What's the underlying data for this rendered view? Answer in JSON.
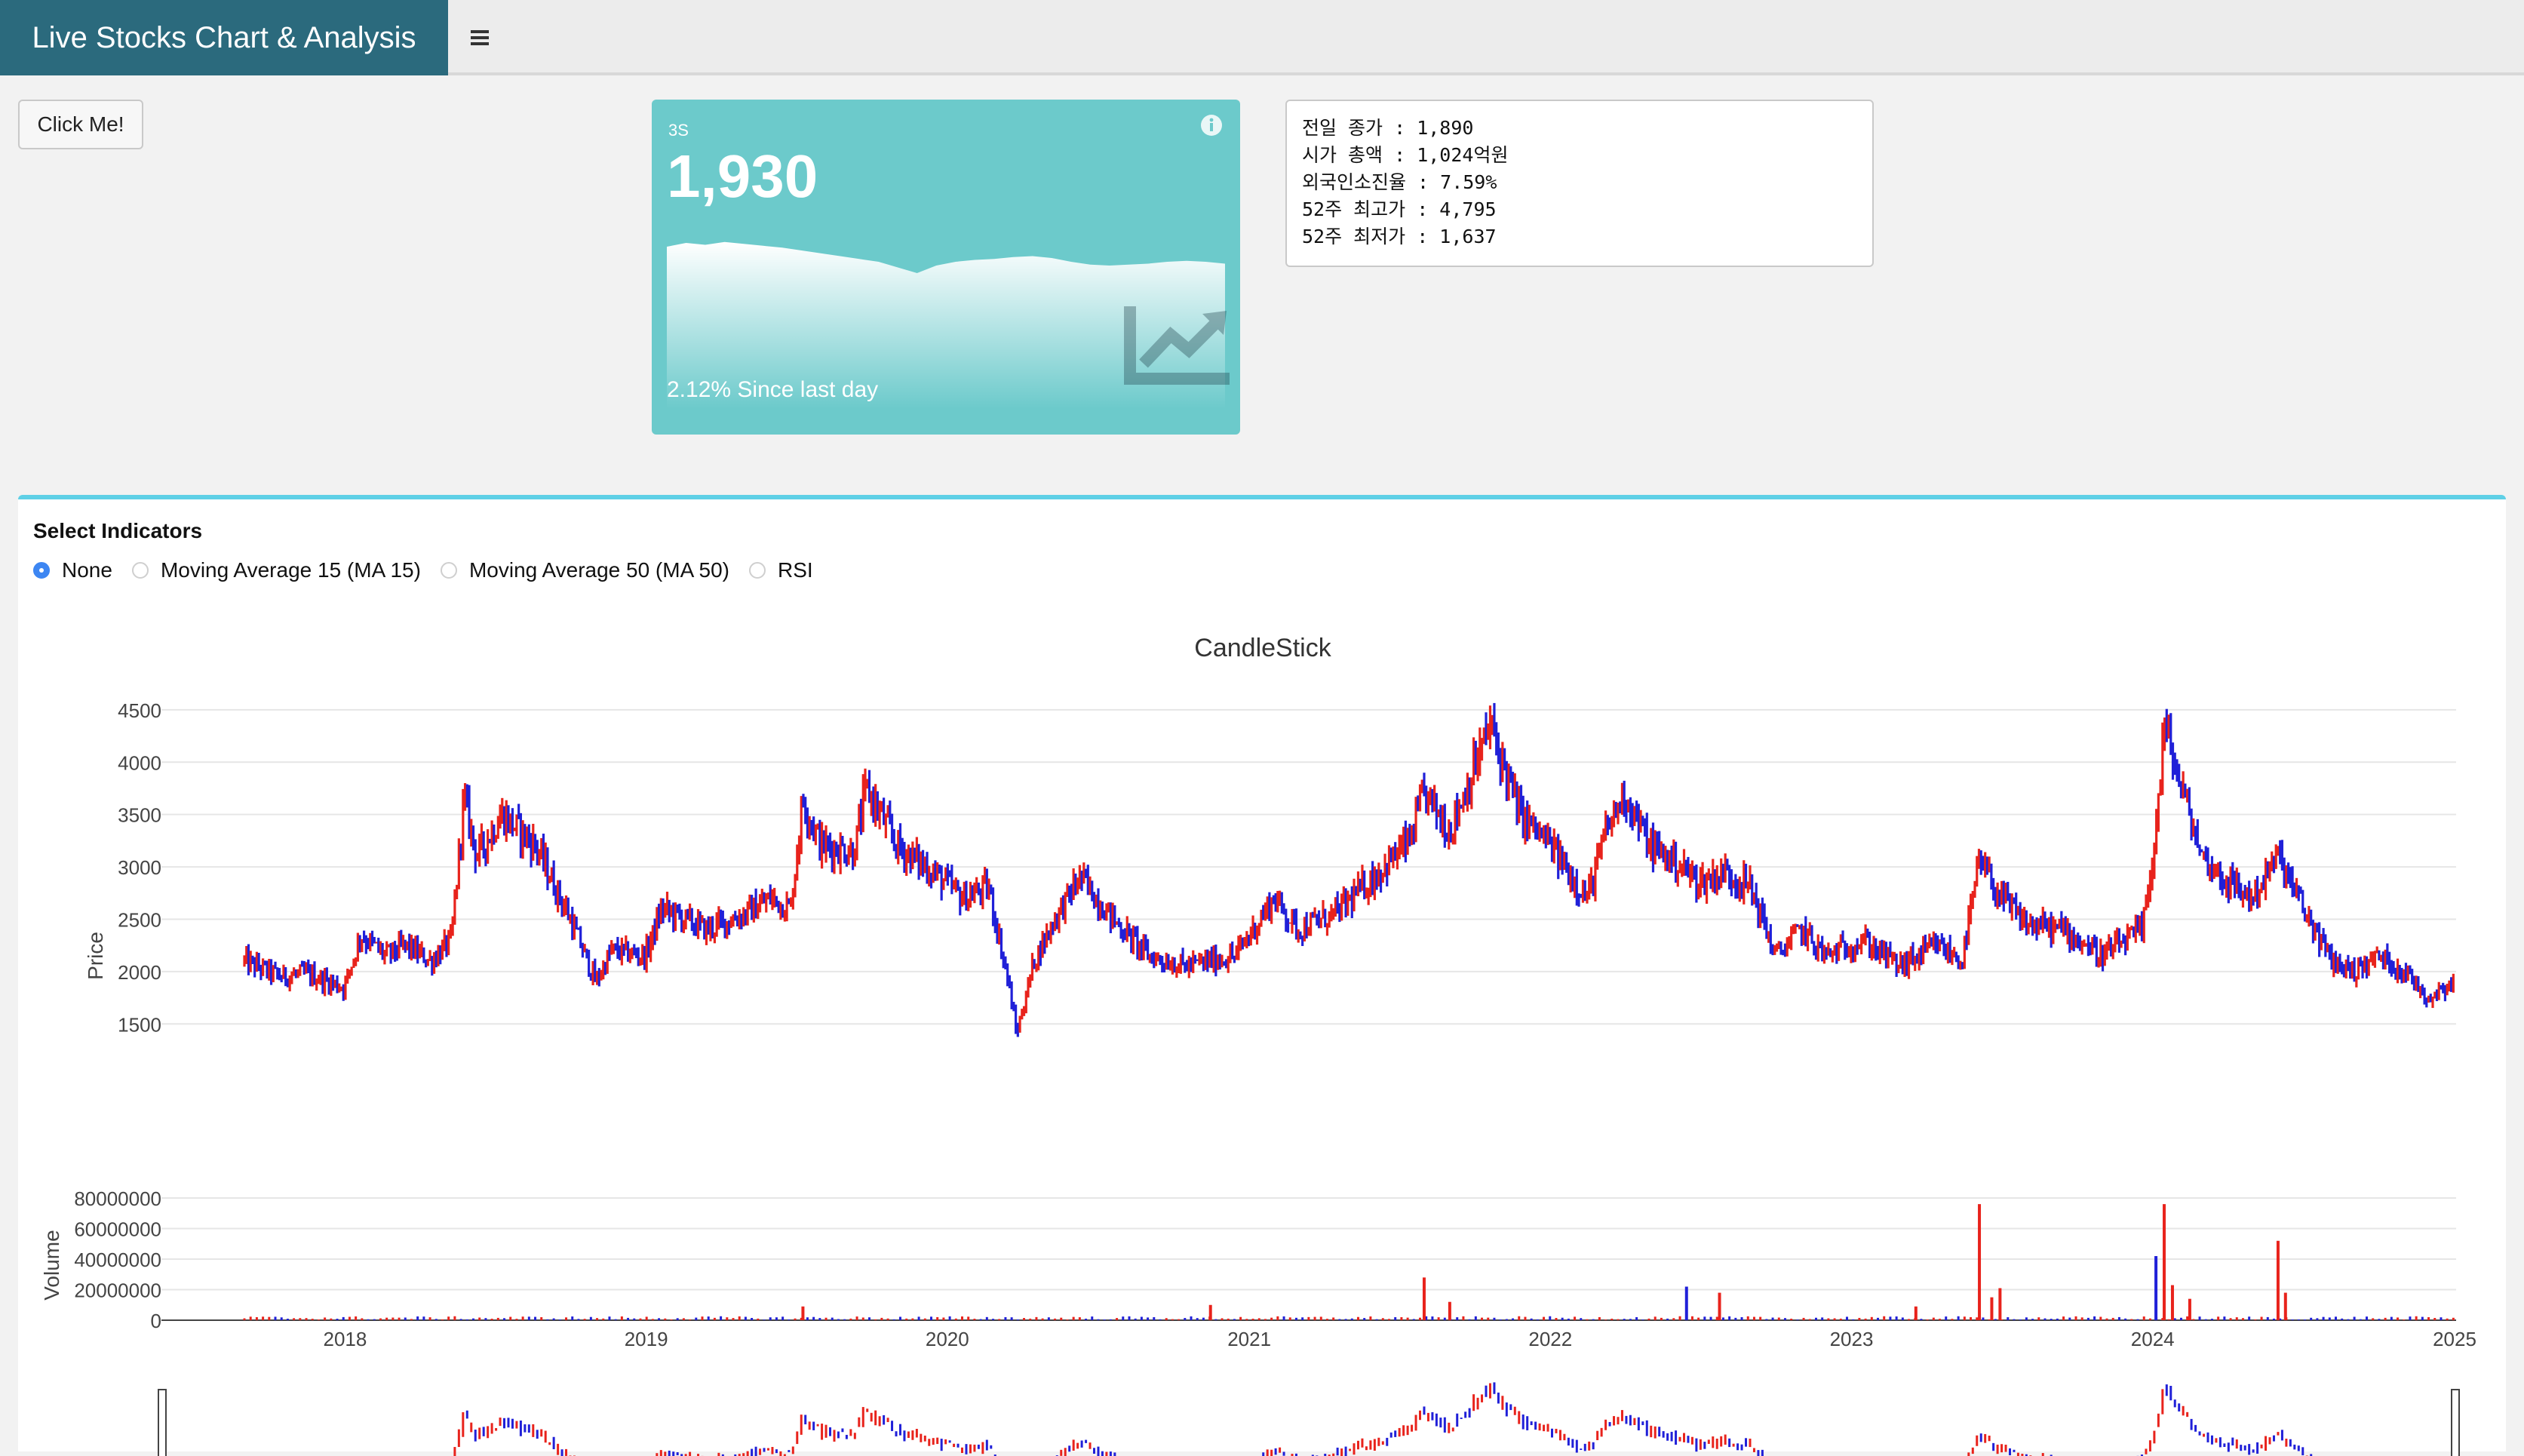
{
  "header": {
    "title": "Live Stocks Chart & Analysis",
    "menu_icon": "hamburger-icon"
  },
  "button": {
    "label": "Click Me!"
  },
  "value_box": {
    "subtitle": "3S",
    "value": "1,930",
    "footer": "2.12% Since last day",
    "color": "#6ccacb",
    "sparkline": [
      2040,
      2060,
      2050,
      2065,
      2055,
      2045,
      2035,
      2020,
      2005,
      1990,
      1975,
      1960,
      1930,
      1900,
      1940,
      1960,
      1970,
      1975,
      1985,
      1990,
      1980,
      1960,
      1945,
      1940,
      1945,
      1950,
      1960,
      1965,
      1960,
      1950
    ]
  },
  "info_box": {
    "lines": [
      "전일 종가 : 1,890",
      "시가 총액 : 1,024억원",
      "외국인소진율 : 7.59%",
      "52주 최고가 : 4,795",
      "52주 최저가 : 1,637"
    ]
  },
  "indicators": {
    "title": "Select Indicators",
    "options": [
      "None",
      "Moving Average 15 (MA 15)",
      "Moving Average 50 (MA 50)",
      "RSI"
    ],
    "selected": "None"
  },
  "chart_data": {
    "type": "candlestick",
    "title": "CandleStick",
    "price_axis": {
      "label": "Price",
      "ticks": [
        1500,
        2000,
        2500,
        3000,
        3500,
        4000,
        4500
      ],
      "range": [
        1250,
        4780
      ]
    },
    "volume_axis": {
      "label": "Volume",
      "ticks": [
        0,
        20000000,
        40000000,
        60000000,
        80000000
      ],
      "tick_labels": [
        "0",
        "20000000",
        "40000000",
        "60000000",
        "80000000"
      ],
      "range": [
        0,
        82000000
      ]
    },
    "x_axis": {
      "ticks": [
        "2018",
        "2019",
        "2020",
        "2021",
        "2022",
        "2023",
        "2024",
        "2025"
      ],
      "range": [
        "2017-09-01",
        "2025-01-01"
      ]
    },
    "up_color": "#e8231c",
    "down_color": "#2020d8",
    "price_path": [
      [
        "2017-09-01",
        2100
      ],
      [
        "2017-10-15",
        1950
      ],
      [
        "2017-11-15",
        1980
      ],
      [
        "2017-12-31",
        1850
      ],
      [
        "2018-01-20",
        2350
      ],
      [
        "2018-02-20",
        2150
      ],
      [
        "2018-03-15",
        2250
      ],
      [
        "2018-04-15",
        2100
      ],
      [
        "2018-05-10",
        2300
      ],
      [
        "2018-05-25",
        3650
      ],
      [
        "2018-06-10",
        3100
      ],
      [
        "2018-07-10",
        3500
      ],
      [
        "2018-08-20",
        3200
      ],
      [
        "2018-10-01",
        2500
      ],
      [
        "2018-11-01",
        1900
      ],
      [
        "2018-11-20",
        2200
      ],
      [
        "2018-12-31",
        2150
      ],
      [
        "2019-01-20",
        2600
      ],
      [
        "2019-03-15",
        2400
      ],
      [
        "2019-05-01",
        2550
      ],
      [
        "2019-06-01",
        2700
      ],
      [
        "2019-06-25",
        2600
      ],
      [
        "2019-07-10",
        3650
      ],
      [
        "2019-08-01",
        3200
      ],
      [
        "2019-09-10",
        3150
      ],
      [
        "2019-09-25",
        3750
      ],
      [
        "2019-11-01",
        3200
      ],
      [
        "2019-12-15",
        2950
      ],
      [
        "2020-01-20",
        2700
      ],
      [
        "2020-02-20",
        2800
      ],
      [
        "2020-03-15",
        1900
      ],
      [
        "2020-03-25",
        1400
      ],
      [
        "2020-04-15",
        2100
      ],
      [
        "2020-05-10",
        2500
      ],
      [
        "2020-06-10",
        2900
      ],
      [
        "2020-07-20",
        2500
      ],
      [
        "2020-09-01",
        2150
      ],
      [
        "2020-10-15",
        2050
      ],
      [
        "2020-12-15",
        2150
      ],
      [
        "2021-01-31",
        2700
      ],
      [
        "2021-03-01",
        2400
      ],
      [
        "2021-04-15",
        2550
      ],
      [
        "2021-06-01",
        2900
      ],
      [
        "2021-07-15",
        3250
      ],
      [
        "2021-08-01",
        3700
      ],
      [
        "2021-09-01",
        3350
      ],
      [
        "2021-10-01",
        3950
      ],
      [
        "2021-10-20",
        4350
      ],
      [
        "2021-11-25",
        3500
      ],
      [
        "2022-01-01",
        3200
      ],
      [
        "2022-02-15",
        2700
      ],
      [
        "2022-03-10",
        3350
      ],
      [
        "2022-04-01",
        3700
      ],
      [
        "2022-05-01",
        3200
      ],
      [
        "2022-06-01",
        3050
      ],
      [
        "2022-07-01",
        2850
      ],
      [
        "2022-08-01",
        2950
      ],
      [
        "2022-09-01",
        2800
      ],
      [
        "2022-10-01",
        2150
      ],
      [
        "2022-11-01",
        2400
      ],
      [
        "2022-12-01",
        2150
      ],
      [
        "2023-01-15",
        2300
      ],
      [
        "2023-03-01",
        2050
      ],
      [
        "2023-04-15",
        2250
      ],
      [
        "2023-05-15",
        2100
      ],
      [
        "2023-06-05",
        3050
      ],
      [
        "2023-07-01",
        2700
      ],
      [
        "2023-08-01",
        2450
      ],
      [
        "2023-09-15",
        2400
      ],
      [
        "2023-11-01",
        2150
      ],
      [
        "2023-12-20",
        2400
      ],
      [
        "2024-01-05",
        3350
      ],
      [
        "2024-01-15",
        4350
      ],
      [
        "2024-02-01",
        3850
      ],
      [
        "2024-03-01",
        3100
      ],
      [
        "2024-04-01",
        2850
      ],
      [
        "2024-05-01",
        2700
      ],
      [
        "2024-06-01",
        3100
      ],
      [
        "2024-07-01",
        2600
      ],
      [
        "2024-08-05",
        2100
      ],
      [
        "2024-09-01",
        2000
      ],
      [
        "2024-10-01",
        2150
      ],
      [
        "2024-11-01",
        2000
      ],
      [
        "2024-12-01",
        1750
      ],
      [
        "2025-01-01",
        1930
      ]
    ],
    "volume_spikes": [
      [
        "2019-07-10",
        9000000
      ],
      [
        "2020-11-15",
        10000000
      ],
      [
        "2021-08-01",
        28000000
      ],
      [
        "2021-09-01",
        12000000
      ],
      [
        "2022-06-15",
        22000000
      ],
      [
        "2022-07-25",
        18000000
      ],
      [
        "2023-03-20",
        9000000
      ],
      [
        "2023-06-05",
        76000000
      ],
      [
        "2023-06-20",
        15000000
      ],
      [
        "2023-06-30",
        21000000
      ],
      [
        "2024-01-05",
        42000000
      ],
      [
        "2024-01-15",
        76000000
      ],
      [
        "2024-01-25",
        23000000
      ],
      [
        "2024-02-15",
        14000000
      ],
      [
        "2024-06-01",
        52000000
      ],
      [
        "2024-06-10",
        18000000
      ]
    ]
  }
}
